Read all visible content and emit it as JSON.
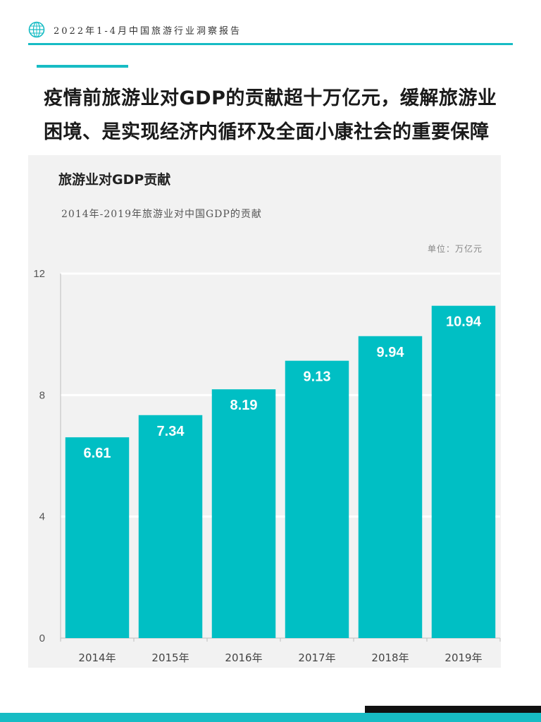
{
  "header": {
    "title": "2022年1-4月中国旅游行业洞察报告",
    "icon": "globe-icon"
  },
  "headline": {
    "line1": "疫情前旅游业对GDP的贡献超十万亿元，缓解旅游业",
    "line2": "困境、是实现经济内循环及全面小康社会的重要保障"
  },
  "chart_data": {
    "type": "bar",
    "title": "旅游业对GDP贡献",
    "subtitle": "2014年-2019年旅游业对中国GDP的贡献",
    "unit": "单位：万亿元",
    "categories": [
      "2014年",
      "2015年",
      "2016年",
      "2017年",
      "2018年",
      "2019年"
    ],
    "values": [
      6.61,
      7.34,
      8.19,
      9.13,
      9.94,
      10.94
    ],
    "data_labels": [
      "6.61",
      "7.34",
      "8.19",
      "9.13",
      "9.94",
      "10.94"
    ],
    "ylim": [
      0,
      12
    ],
    "yticks": [
      0,
      4,
      8,
      12
    ],
    "ytick_labels": [
      "0",
      "4",
      "8",
      "12"
    ],
    "xlabel": "",
    "ylabel": "",
    "grid": true,
    "bar_color": "#00bfc4",
    "grid_color": "#ffffff"
  },
  "colors": {
    "accent": "#17bcc4",
    "panel_bg": "#f2f2f2"
  }
}
